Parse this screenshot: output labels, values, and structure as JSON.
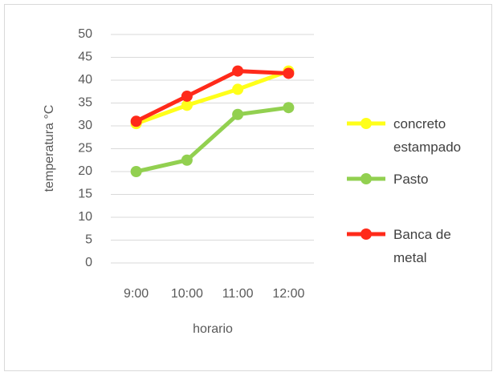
{
  "chart_data": {
    "type": "line",
    "categories": [
      "9:00",
      "10:00",
      "11:00",
      "12:00"
    ],
    "series": [
      {
        "name": "concreto estampado",
        "color": "#ffff1a",
        "values": [
          30.5,
          34.5,
          38,
          42
        ]
      },
      {
        "name": "Pasto",
        "color": "#92d050",
        "values": [
          20,
          22.5,
          32.5,
          34
        ]
      },
      {
        "name": "Banca de metal",
        "color": "#ff2a1a",
        "values": [
          31,
          36.5,
          42,
          41.5
        ]
      }
    ],
    "ylim": [
      0,
      50
    ],
    "yticks": [
      0,
      5,
      10,
      15,
      20,
      25,
      30,
      35,
      40,
      45,
      50
    ],
    "grid": true,
    "legend": "right",
    "x_label": "horario",
    "y_label": "temperatura °C"
  }
}
